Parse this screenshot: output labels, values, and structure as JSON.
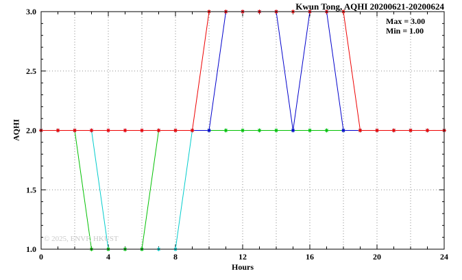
{
  "title": "Kwun Tong, AQHI 20200621-20200624",
  "watermark": "© 2025, ENVF, HKUST",
  "annotation": {
    "max_label": "Max = 3.00",
    "min_label": "Min = 1.00"
  },
  "chart_data": {
    "type": "line",
    "title": "Kwun Tong, AQHI 20200621-20200624",
    "xlabel": "Hours",
    "ylabel": "AQHI",
    "xlim": [
      0,
      24
    ],
    "ylim": [
      1.0,
      3.0
    ],
    "x_major_ticks": [
      0,
      4,
      8,
      12,
      16,
      20,
      24
    ],
    "x_tick_labels": [
      "0",
      "4",
      "8",
      "12",
      "16",
      "20",
      "24"
    ],
    "y_major_ticks": [
      1.0,
      1.5,
      2.0,
      2.5,
      3.0
    ],
    "y_tick_labels": [
      "1.0",
      "1.5",
      "2.0",
      "2.5",
      "3.0"
    ],
    "grid": {
      "on": true,
      "x_step": 2,
      "y_step": 0.5,
      "style": "dotted"
    },
    "legend": "none",
    "marker": "asterisk",
    "annotations": [
      "Max = 3.00",
      "Min = 1.00"
    ],
    "x": [
      0,
      1,
      2,
      3,
      4,
      5,
      6,
      7,
      8,
      9,
      10,
      11,
      12,
      13,
      14,
      15,
      16,
      17,
      18,
      19,
      20,
      21,
      22,
      23,
      24
    ],
    "series": [
      {
        "name": "cyan-day",
        "color": "#00cccc",
        "values": [
          2,
          2,
          2,
          2,
          1,
          1,
          1,
          1,
          1,
          2,
          2,
          2,
          2,
          2,
          2,
          2,
          2,
          2,
          2,
          2,
          2,
          2,
          2,
          2,
          2
        ]
      },
      {
        "name": "green-day",
        "color": "#00c000",
        "values": [
          2,
          2,
          2,
          1,
          1,
          1,
          1,
          2,
          2,
          2,
          2,
          2,
          2,
          2,
          2,
          2,
          2,
          2,
          2,
          2,
          2,
          2,
          2,
          2,
          2
        ]
      },
      {
        "name": "blue-day",
        "color": "#0000cc",
        "values": [
          2,
          2,
          2,
          2,
          2,
          2,
          2,
          2,
          2,
          2,
          2,
          3,
          3,
          3,
          3,
          2,
          3,
          3,
          2,
          2,
          2,
          2,
          2,
          2,
          2
        ]
      },
      {
        "name": "red-day",
        "color": "#ee0000",
        "values": [
          2,
          2,
          2,
          2,
          2,
          2,
          2,
          2,
          2,
          2,
          3,
          3,
          3,
          3,
          3,
          3,
          3,
          3,
          3,
          2,
          2,
          2,
          2,
          2,
          2
        ]
      }
    ]
  }
}
